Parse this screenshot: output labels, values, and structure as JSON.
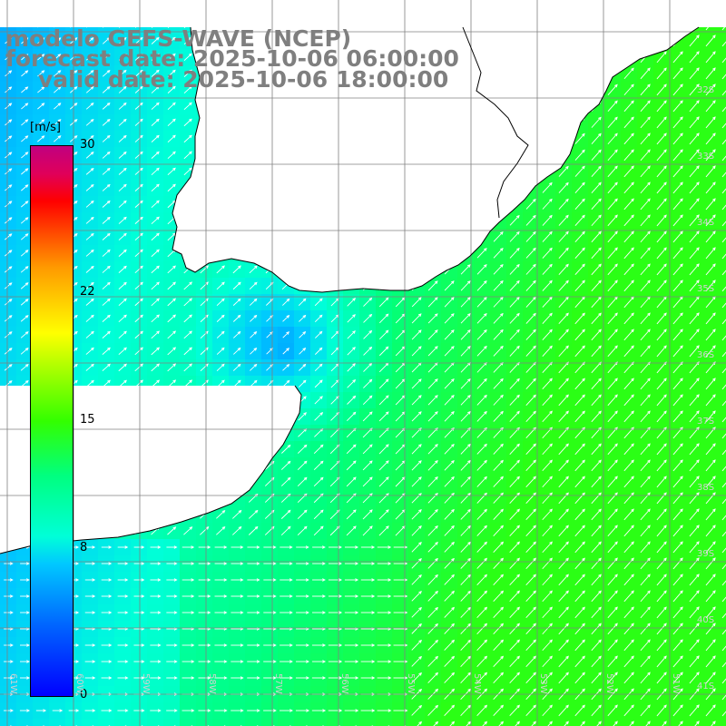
{
  "title": {
    "model": "modelo GEFS-WAVE (NCEP)",
    "forecast": "forecast date: 2025-10-06 06:00:00",
    "valid": "valid date: 2025-10-06 18:00:00"
  },
  "colorbar": {
    "unit": "[m/s]",
    "ticks": [
      {
        "value": 30,
        "label": "30"
      },
      {
        "value": 22,
        "label": "22"
      },
      {
        "value": 15,
        "label": "15"
      },
      {
        "value": 8,
        "label": "8"
      },
      {
        "value": 0,
        "label": "0"
      }
    ],
    "min": 0,
    "max": 30
  },
  "grid": {
    "lat_labels": [
      "32S",
      "33S",
      "34S",
      "35S",
      "36S",
      "37S",
      "38S",
      "39S",
      "40S",
      "41S"
    ],
    "lon_labels": [
      "61W",
      "60W",
      "59W",
      "58W",
      "57W",
      "56W",
      "55W",
      "54W",
      "53W",
      "52W",
      "51W"
    ]
  },
  "colors": {
    "land": "#ffffff",
    "coastline": "#000000",
    "gridline": "#808080",
    "title_text": "#7f7f7f",
    "arrow": "#ffffff"
  }
}
